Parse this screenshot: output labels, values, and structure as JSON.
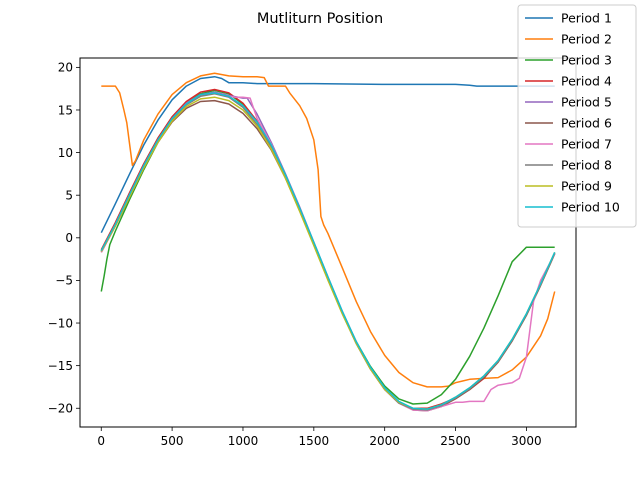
{
  "chart_data": {
    "type": "line",
    "title": "Mutliturn Position",
    "xlabel": "",
    "ylabel": "",
    "xlim": [
      -150,
      3350
    ],
    "ylim": [
      -22.2,
      21.1
    ],
    "xticks": [
      0,
      500,
      1000,
      1500,
      2000,
      2500,
      3000
    ],
    "yticks": [
      -20,
      -15,
      -10,
      -5,
      0,
      5,
      10,
      15,
      20
    ],
    "grid": false,
    "legend_position": "top-right",
    "series": [
      {
        "name": "Period 1",
        "color": "#1f77b4",
        "x": [
          0,
          100,
          200,
          300,
          400,
          500,
          600,
          700,
          800,
          850,
          900,
          950,
          1000,
          1100,
          1200,
          1500,
          2000,
          2500,
          2600,
          2650,
          3200
        ],
        "y": [
          0.6,
          4.0,
          7.5,
          10.9,
          13.8,
          16.2,
          17.8,
          18.7,
          18.9,
          18.7,
          18.2,
          18.2,
          18.2,
          18.1,
          18.1,
          18.1,
          18.0,
          18.0,
          17.9,
          17.8,
          17.8
        ]
      },
      {
        "name": "Period 2",
        "color": "#ff7f0e",
        "x": [
          0,
          100,
          130,
          160,
          180,
          200,
          220,
          240,
          300,
          400,
          500,
          600,
          700,
          800,
          900,
          1000,
          1100,
          1150,
          1180,
          1300,
          1330,
          1400,
          1450,
          1500,
          1530,
          1550,
          1570,
          1600,
          1700,
          1800,
          1900,
          2000,
          2100,
          2200,
          2300,
          2400,
          2450,
          2500,
          2550,
          2600,
          2700,
          2800,
          2900,
          3000,
          3100,
          3150,
          3200
        ],
        "y": [
          17.8,
          17.8,
          17.0,
          15.0,
          13.5,
          11.0,
          8.5,
          9.0,
          11.5,
          14.5,
          16.8,
          18.2,
          19.0,
          19.3,
          19.0,
          18.9,
          18.9,
          18.8,
          17.8,
          17.8,
          17.0,
          15.5,
          14.0,
          11.5,
          8.0,
          2.5,
          1.5,
          0.5,
          -3.5,
          -7.5,
          -11.0,
          -13.8,
          -15.8,
          -17.0,
          -17.5,
          -17.5,
          -17.4,
          -17.0,
          -16.8,
          -16.6,
          -16.5,
          -16.4,
          -15.5,
          -14.0,
          -11.5,
          -9.5,
          -6.3
        ]
      },
      {
        "name": "Period 3",
        "color": "#2ca02c",
        "x": [
          0,
          20,
          40,
          60,
          100,
          200,
          300,
          400,
          500,
          600,
          700,
          800,
          900,
          1000,
          1100,
          1200,
          1300,
          1400,
          1500,
          1600,
          1700,
          1800,
          1900,
          2000,
          2100,
          2200,
          2300,
          2400,
          2500,
          2600,
          2700,
          2800,
          2900,
          3000,
          3100,
          3200
        ],
        "y": [
          -6.3,
          -4.5,
          -2.5,
          -0.8,
          0.8,
          4.5,
          8.0,
          11.2,
          13.8,
          15.8,
          16.9,
          17.3,
          16.9,
          15.7,
          13.6,
          10.8,
          7.3,
          3.4,
          -0.7,
          -4.8,
          -8.7,
          -12.2,
          -15.1,
          -17.4,
          -18.9,
          -19.5,
          -19.4,
          -18.4,
          -16.6,
          -13.9,
          -10.6,
          -6.8,
          -2.8,
          -1.1,
          -1.1,
          -1.1
        ]
      },
      {
        "name": "Period 4",
        "color": "#d62728",
        "x": [
          0,
          100,
          200,
          300,
          400,
          500,
          600,
          700,
          800,
          900,
          1000,
          1100,
          1200,
          1300,
          1400,
          1500,
          1600,
          1700,
          1800,
          1900,
          2000,
          2100,
          2200,
          2300,
          2400,
          2500,
          2600,
          2700,
          2800,
          2900,
          3000,
          3100,
          3200
        ],
        "y": [
          -1.4,
          1.8,
          5.3,
          8.7,
          11.7,
          14.2,
          16.0,
          17.1,
          17.4,
          17.0,
          15.8,
          13.7,
          10.8,
          7.3,
          3.4,
          -0.7,
          -4.8,
          -8.7,
          -12.3,
          -15.3,
          -17.7,
          -19.3,
          -20.0,
          -20.0,
          -19.5,
          -18.8,
          -17.8,
          -16.5,
          -14.5,
          -12.0,
          -9.0,
          -5.5,
          -1.8
        ]
      },
      {
        "name": "Period 5",
        "color": "#9467bd",
        "x": [
          0,
          100,
          200,
          300,
          400,
          500,
          600,
          700,
          800,
          900,
          1000,
          1030,
          1100,
          1200,
          1300,
          1400,
          1500,
          1600,
          1700,
          1800,
          1900,
          2000,
          2100,
          2200,
          2300,
          2400,
          2500,
          2600,
          2700,
          2800,
          2900,
          3000,
          3100,
          3200
        ],
        "y": [
          -1.6,
          1.6,
          5.1,
          8.5,
          11.5,
          14.0,
          15.8,
          16.8,
          17.1,
          16.7,
          16.4,
          16.4,
          14.5,
          11.2,
          7.5,
          3.6,
          -0.5,
          -4.6,
          -8.6,
          -12.2,
          -15.3,
          -17.8,
          -19.4,
          -20.1,
          -20.2,
          -19.7,
          -18.8,
          -17.7,
          -16.3,
          -14.5,
          -12.0,
          -9.0,
          -5.5,
          -1.8
        ]
      },
      {
        "name": "Period 6",
        "color": "#8c564b",
        "x": [
          0,
          100,
          200,
          300,
          400,
          500,
          600,
          700,
          800,
          900,
          1000,
          1100,
          1200,
          1300,
          1400,
          1500,
          1600,
          1700,
          1800,
          1900,
          2000,
          2100,
          2200,
          2300,
          2400,
          2500,
          2600,
          2700,
          2800,
          2900,
          3000,
          3100,
          3200
        ],
        "y": [
          -1.7,
          1.4,
          4.8,
          8.2,
          11.2,
          13.6,
          15.2,
          16.0,
          16.1,
          15.7,
          14.6,
          12.8,
          10.3,
          7.0,
          3.2,
          -0.8,
          -4.9,
          -8.8,
          -12.4,
          -15.4,
          -17.8,
          -19.4,
          -20.2,
          -20.3,
          -19.8,
          -18.9,
          -17.8,
          -16.4,
          -14.6,
          -12.1,
          -9.1,
          -5.6,
          -1.9
        ]
      },
      {
        "name": "Period 7",
        "color": "#e377c2",
        "x": [
          0,
          100,
          200,
          300,
          400,
          500,
          600,
          700,
          800,
          900,
          950,
          1000,
          1050,
          1100,
          1200,
          1300,
          1400,
          1500,
          1600,
          1700,
          1800,
          1900,
          2000,
          2100,
          2200,
          2300,
          2400,
          2500,
          2550,
          2600,
          2700,
          2750,
          2800,
          2900,
          2950,
          3000,
          3050,
          3100,
          3200
        ],
        "y": [
          -1.7,
          1.4,
          4.9,
          8.3,
          11.4,
          13.9,
          15.7,
          16.7,
          17.0,
          16.6,
          16.5,
          16.5,
          16.4,
          14.0,
          11.0,
          7.3,
          3.4,
          -0.7,
          -4.8,
          -8.8,
          -12.4,
          -15.4,
          -17.8,
          -19.4,
          -20.2,
          -20.3,
          -19.8,
          -19.3,
          -19.3,
          -19.2,
          -19.2,
          -17.8,
          -17.3,
          -17.0,
          -16.5,
          -14.0,
          -7.5,
          -5.0,
          -1.9
        ]
      },
      {
        "name": "Period 8",
        "color": "#7f7f7f",
        "x": [
          0,
          100,
          200,
          300,
          400,
          500,
          600,
          700,
          800,
          900,
          1000,
          1100,
          1200,
          1300,
          1400,
          1500,
          1600,
          1700,
          1800,
          1900,
          2000,
          2100,
          2200,
          2300,
          2400,
          2500,
          2600,
          2700,
          2800,
          2900,
          3000,
          3100,
          3200
        ],
        "y": [
          -1.6,
          1.5,
          5.0,
          8.4,
          11.4,
          13.9,
          15.6,
          16.6,
          16.9,
          16.5,
          15.3,
          13.3,
          10.6,
          7.2,
          3.3,
          -0.7,
          -4.8,
          -8.8,
          -12.4,
          -15.4,
          -17.8,
          -19.4,
          -20.1,
          -20.2,
          -19.7,
          -18.8,
          -17.7,
          -16.3,
          -14.5,
          -12.0,
          -9.0,
          -5.5,
          -1.8
        ]
      },
      {
        "name": "Period 9",
        "color": "#bcbd22",
        "x": [
          0,
          100,
          200,
          300,
          400,
          500,
          600,
          700,
          800,
          900,
          1000,
          1100,
          1200,
          1300,
          1400,
          1500,
          1600,
          1700,
          1800,
          1900,
          2000,
          2100,
          2200,
          2300,
          2400,
          2500,
          2600,
          2700,
          2800,
          2900,
          3000,
          3100,
          3200
        ],
        "y": [
          -1.6,
          1.4,
          4.8,
          8.2,
          11.2,
          13.7,
          15.4,
          16.3,
          16.5,
          16.1,
          15.0,
          13.1,
          10.4,
          7.0,
          3.1,
          -0.9,
          -5.0,
          -8.9,
          -12.4,
          -15.4,
          -17.8,
          -19.3,
          -20.0,
          -20.1,
          -19.6,
          -18.7,
          -17.6,
          -16.2,
          -14.4,
          -11.9,
          -8.9,
          -5.4,
          -1.7
        ]
      },
      {
        "name": "Period 10",
        "color": "#17becf",
        "x": [
          0,
          100,
          200,
          300,
          400,
          500,
          600,
          700,
          800,
          900,
          1000,
          1100,
          1200,
          1300,
          1400,
          1500,
          1600,
          1700,
          1800,
          1900,
          2000,
          2100,
          2200,
          2300,
          2400,
          2500,
          2600,
          2700,
          2800,
          2900,
          3000,
          3100,
          3200
        ],
        "y": [
          -1.5,
          1.6,
          5.1,
          8.5,
          11.5,
          14.0,
          15.7,
          16.8,
          17.0,
          16.6,
          15.5,
          13.6,
          10.9,
          7.4,
          3.5,
          -0.5,
          -4.6,
          -8.6,
          -12.2,
          -15.2,
          -17.6,
          -19.2,
          -20.0,
          -20.1,
          -19.6,
          -18.7,
          -17.6,
          -16.2,
          -14.4,
          -11.9,
          -8.9,
          -5.4,
          -1.7
        ]
      }
    ]
  }
}
